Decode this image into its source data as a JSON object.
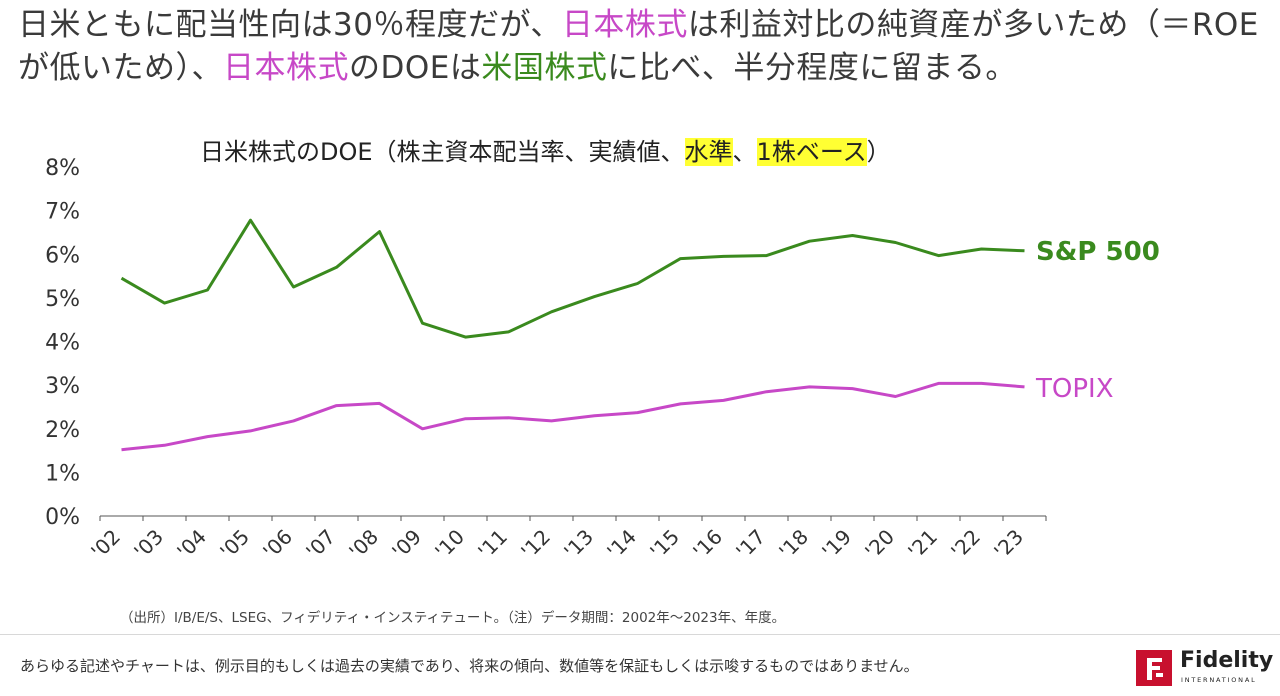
{
  "headline": {
    "part1": "日米ともに配当性向は30％程度だが、",
    "part2": "日本株式",
    "part3": "は利益対比の純資産が多いため（＝ROEが低いため）、",
    "part4": "日本株式",
    "part5": "のDOEは",
    "part6": "米国株式",
    "part7": "に比べ、半分程度に留まる。"
  },
  "chart_title": {
    "part1": "日米株式のDOE（株主資本配当率、実績値、",
    "hl1": "水準",
    "sep": "、",
    "hl2": "1株ベース",
    "end": "）"
  },
  "colors": {
    "sp500": "#3a8a1e",
    "topix": "#c748c7",
    "accent_pink": "#c748c7",
    "accent_green": "#3a8a1e",
    "highlight": "#ffff33",
    "brand_red": "#c8102e"
  },
  "chart_data": {
    "type": "line",
    "title": "日米株式のDOE（株主資本配当率、実績値、水準、1株ベース）",
    "categories": [
      "'02",
      "'03",
      "'04",
      "'05",
      "'06",
      "'07",
      "'08",
      "'09",
      "'10",
      "'11",
      "'12",
      "'13",
      "'14",
      "'15",
      "'16",
      "'17",
      "'18",
      "'19",
      "'20",
      "'21",
      "'22",
      "'23"
    ],
    "series": [
      {
        "name": "S&P 500",
        "color": "#3a8a1e",
        "values": [
          5.45,
          4.88,
          5.18,
          6.78,
          5.25,
          5.7,
          6.52,
          4.42,
          4.1,
          4.22,
          4.68,
          5.03,
          5.33,
          5.9,
          5.95,
          5.97,
          6.3,
          6.43,
          6.27,
          5.97,
          6.12,
          6.08
        ]
      },
      {
        "name": "TOPIX",
        "color": "#c748c7",
        "values": [
          1.52,
          1.62,
          1.82,
          1.95,
          2.18,
          2.53,
          2.58,
          2.0,
          2.23,
          2.25,
          2.18,
          2.3,
          2.37,
          2.57,
          2.65,
          2.85,
          2.96,
          2.92,
          2.74,
          3.04,
          3.04,
          2.96
        ]
      }
    ],
    "yticks": [
      "0%",
      "1%",
      "2%",
      "3%",
      "4%",
      "5%",
      "6%",
      "7%",
      "8%"
    ],
    "ylim": [
      0,
      8
    ],
    "xlabel": "",
    "ylabel": ""
  },
  "source": "（出所）I/B/E/S、LSEG、フィデリティ・インスティテュート。（注）データ期間：2002年～2023年、年度。",
  "disclaimer": "あらゆる記述やチャートは、例示目的もしくは過去の実績であり、将来の傾向、数値等を保証もしくは示唆するものではありません。",
  "logo": {
    "word": "Fidelity",
    "sub": "INTERNATIONAL"
  }
}
